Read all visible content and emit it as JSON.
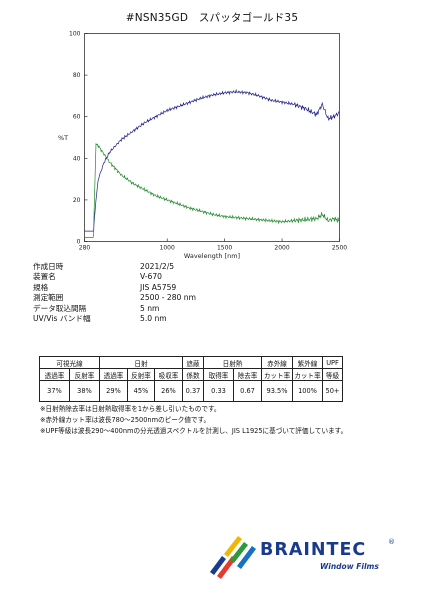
{
  "title": "#NSN35GD　スパッタゴールド35",
  "chart_data": {
    "type": "line",
    "xlabel": "Wavelength [nm]",
    "ylabel": "%T",
    "xlim": [
      280,
      2500
    ],
    "ylim": [
      0,
      100
    ],
    "x_ticks": [
      "280",
      "1000",
      "1500",
      "2000",
      "2500"
    ],
    "y_ticks": [
      "0",
      "20",
      "40",
      "60",
      "80",
      "100"
    ],
    "grid": false,
    "series": [
      {
        "color": "#1f1f8c",
        "x": [
          280,
          360,
          362,
          380,
          400,
          450,
          500,
          550,
          600,
          650,
          700,
          800,
          900,
          1000,
          1100,
          1200,
          1300,
          1400,
          1500,
          1600,
          1700,
          1800,
          1900,
          2000,
          2100,
          2200,
          2300,
          2350,
          2400,
          2450,
          2500
        ],
        "y": [
          5,
          5,
          8,
          20,
          30,
          38,
          43,
          46,
          49,
          51,
          53,
          57,
          60,
          63,
          65,
          67,
          69,
          70.5,
          71.5,
          72,
          71.5,
          70,
          68,
          67,
          66,
          64,
          61,
          66,
          59,
          60,
          62
        ]
      },
      {
        "color": "#1e8a2c",
        "x": [
          280,
          355,
          358,
          380,
          400,
          450,
          500,
          550,
          600,
          700,
          800,
          900,
          1000,
          1100,
          1200,
          1300,
          1400,
          1500,
          1600,
          1700,
          1800,
          1900,
          2000,
          2100,
          2200,
          2300,
          2350,
          2400,
          2450,
          2500
        ],
        "y": [
          2,
          2,
          3,
          47,
          46,
          42,
          38,
          35,
          32,
          28,
          25,
          22,
          20,
          18,
          16,
          14.5,
          13,
          12,
          11.5,
          11,
          10.5,
          10,
          9.5,
          10,
          10.5,
          11,
          13,
          10,
          11,
          10
        ]
      }
    ]
  },
  "meta": [
    {
      "label": "作成日時",
      "value": "2021/2/5"
    },
    {
      "label": "装置名",
      "value": "V-670"
    },
    {
      "label": "規格",
      "value": "JIS A5759"
    },
    {
      "label": "測定範囲",
      "value": "2500 - 280 nm"
    },
    {
      "label": "データ取込間隔",
      "value": "5 nm"
    },
    {
      "label": "UV/Vis バンド幅",
      "value": "5.0 nm"
    }
  ],
  "table": {
    "groups": [
      "可視光線",
      "日射",
      "遮蔽",
      "日射熱",
      "赤外線",
      "紫外線",
      "UPF"
    ],
    "headers": [
      "透過率",
      "反射率",
      "透過率",
      "反射率",
      "吸収率",
      "係数",
      "取得率",
      "除去率",
      "カット率",
      "カット率",
      "等級"
    ],
    "values": [
      "37%",
      "38%",
      "29%",
      "45%",
      "26%",
      "0.37",
      "0.33",
      "0.67",
      "93.5%",
      "100%",
      "50+"
    ]
  },
  "notes": [
    "※日射熱除去率は日射熱取得率を1から差し引いたものです。",
    "※赤外線カット率は波長780～2500nmのピーク値です。",
    "※UPF等級は波長290～400nmの分光透過スペクトルを計測し、JIS L1925に基づいて評価しています。"
  ],
  "logo": {
    "name": "BRAINTEC",
    "reg": "®",
    "tagline": "Window Films",
    "colors": [
      "#1a3a8c",
      "#e63a2e",
      "#f2b705",
      "#2a9a3c",
      "#1a6fc0"
    ]
  }
}
